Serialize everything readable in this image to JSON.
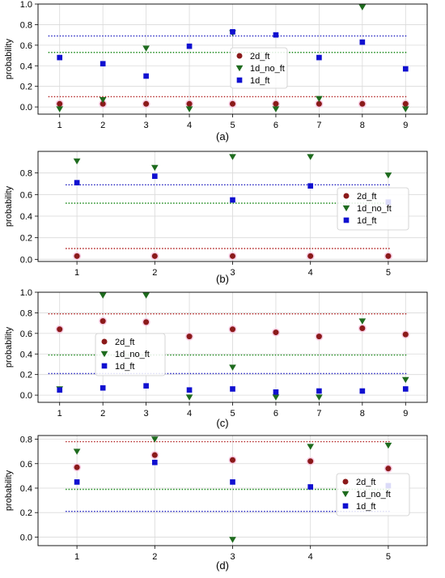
{
  "chart_data": [
    {
      "type": "scatter",
      "caption": "(a)",
      "ylabel": "probability",
      "x": [
        1,
        2,
        3,
        4,
        5,
        6,
        7,
        8,
        9
      ],
      "ylim": [
        -0.07,
        1.0
      ],
      "yticks": [
        "0.0",
        "0.2",
        "0.4",
        "0.6",
        "0.8",
        "1.0"
      ],
      "ytick_values": [
        0,
        0.2,
        0.4,
        0.6,
        0.8,
        1.0
      ],
      "grid": true,
      "legend_position": "center-right",
      "series": [
        {
          "name": "2d_ft",
          "marker": "circle",
          "color": "#8b1a1a",
          "values": [
            0.03,
            0.03,
            0.03,
            0.03,
            0.03,
            0.03,
            0.03,
            0.03,
            0.03
          ]
        },
        {
          "name": "1d_no_ft",
          "marker": "triangle-down",
          "color": "#1e6b1e",
          "values": [
            -0.02,
            0.07,
            0.57,
            -0.02,
            0.72,
            -0.02,
            0.08,
            0.97,
            -0.02
          ]
        },
        {
          "name": "1d_ft",
          "marker": "square",
          "color": "#1010d0",
          "values": [
            0.48,
            0.42,
            0.3,
            0.59,
            0.73,
            0.7,
            0.48,
            0.63,
            0.37
          ]
        }
      ],
      "reference_lines": [
        {
          "color": "#2020c0",
          "value": 0.69
        },
        {
          "color": "#1a8a1a",
          "value": 0.53
        },
        {
          "color": "#b22222",
          "value": 0.1
        }
      ]
    },
    {
      "type": "scatter",
      "caption": "(b)",
      "ylabel": "probability",
      "x": [
        1,
        2,
        3,
        4,
        5
      ],
      "ylim": [
        -0.02,
        1.0
      ],
      "yticks": [
        "0.0",
        "0.2",
        "0.4",
        "0.6",
        "0.8"
      ],
      "ytick_values": [
        0,
        0.2,
        0.4,
        0.6,
        0.8
      ],
      "grid": true,
      "legend_position": "center-right",
      "series": [
        {
          "name": "2d_ft",
          "marker": "circle",
          "color": "#8b1a1a",
          "values": [
            0.03,
            0.03,
            0.03,
            0.03,
            0.03
          ]
        },
        {
          "name": "1d_no_ft",
          "marker": "triangle-down",
          "color": "#1e6b1e",
          "values": [
            0.91,
            0.85,
            0.95,
            0.95,
            0.78
          ]
        },
        {
          "name": "1d_ft",
          "marker": "square",
          "color": "#1010d0",
          "values": [
            0.71,
            0.77,
            0.55,
            0.68,
            0.53
          ]
        }
      ],
      "reference_lines": [
        {
          "color": "#2020c0",
          "value": 0.69
        },
        {
          "color": "#1a8a1a",
          "value": 0.52
        },
        {
          "color": "#b22222",
          "value": 0.1
        }
      ]
    },
    {
      "type": "scatter",
      "caption": "(c)",
      "ylabel": "probability",
      "x": [
        1,
        2,
        3,
        4,
        5,
        6,
        7,
        8,
        9
      ],
      "ylim": [
        -0.07,
        1.0
      ],
      "yticks": [
        "0.0",
        "0.2",
        "0.4",
        "0.6",
        "0.8",
        "1.0"
      ],
      "ytick_values": [
        0,
        0.2,
        0.4,
        0.6,
        0.8,
        1.0
      ],
      "grid": true,
      "legend_position": "center-left",
      "series": [
        {
          "name": "2d_ft",
          "marker": "circle",
          "color": "#8b1a1a",
          "values": [
            0.64,
            0.72,
            0.71,
            0.57,
            0.64,
            0.61,
            0.57,
            0.65,
            0.59
          ]
        },
        {
          "name": "1d_no_ft",
          "marker": "triangle-down",
          "color": "#1e6b1e",
          "values": [
            0.06,
            0.97,
            0.97,
            -0.02,
            0.27,
            -0.02,
            -0.02,
            0.72,
            0.15
          ]
        },
        {
          "name": "1d_ft",
          "marker": "square",
          "color": "#1010d0",
          "values": [
            0.05,
            0.07,
            0.09,
            0.05,
            0.06,
            0.03,
            0.04,
            0.04,
            0.06
          ]
        }
      ],
      "reference_lines": [
        {
          "color": "#b22222",
          "value": 0.79
        },
        {
          "color": "#1a8a1a",
          "value": 0.39
        },
        {
          "color": "#2020c0",
          "value": 0.21
        }
      ]
    },
    {
      "type": "scatter",
      "caption": "(d)",
      "ylabel": "probability",
      "x": [
        1,
        2,
        3,
        4,
        5
      ],
      "ylim": [
        -0.07,
        0.83
      ],
      "yticks": [
        "0.0",
        "0.2",
        "0.4",
        "0.6",
        "0.8"
      ],
      "ytick_values": [
        0,
        0.2,
        0.4,
        0.6,
        0.8
      ],
      "grid": true,
      "legend_position": "center-right",
      "series": [
        {
          "name": "2d_ft",
          "marker": "circle",
          "color": "#8b1a1a",
          "values": [
            0.57,
            0.67,
            0.63,
            0.62,
            0.56
          ]
        },
        {
          "name": "1d_no_ft",
          "marker": "triangle-down",
          "color": "#1e6b1e",
          "values": [
            0.7,
            0.8,
            -0.02,
            0.74,
            0.75
          ]
        },
        {
          "name": "1d_ft",
          "marker": "square",
          "color": "#1010d0",
          "values": [
            0.45,
            0.61,
            0.45,
            0.41,
            0.42
          ]
        }
      ],
      "reference_lines": [
        {
          "color": "#b22222",
          "value": 0.78
        },
        {
          "color": "#1a8a1a",
          "value": 0.39
        },
        {
          "color": "#2020c0",
          "value": 0.21
        }
      ]
    }
  ]
}
